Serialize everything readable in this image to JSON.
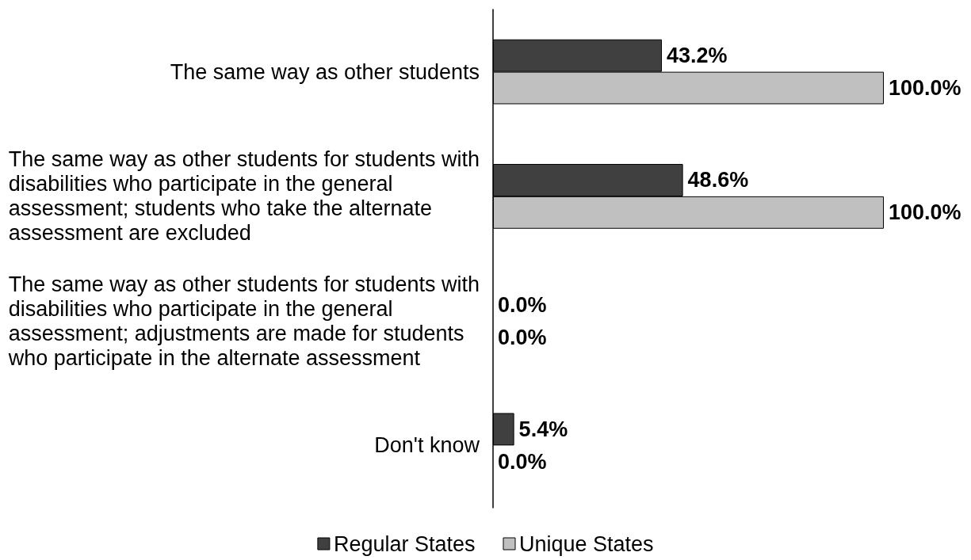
{
  "chart_data": {
    "type": "bar",
    "orientation": "horizontal",
    "categories": [
      "The same way as other students",
      "The same way as other students for students with disabilities who participate in the general assessment; students who take the alternate assessment are excluded",
      "The same way as other students for students with disabilities who participate in the general assessment; adjustments are made for students who participate in the alternate assessment",
      "Don't know"
    ],
    "series": [
      {
        "name": "Regular States",
        "color": "#404040",
        "values": [
          43.2,
          48.6,
          0,
          5.4
        ],
        "value_labels": [
          "43.2%",
          "48.6%",
          "0.0%",
          "5.4%"
        ]
      },
      {
        "name": "Unique States",
        "color": "#c0c0c0",
        "values": [
          100,
          100,
          0,
          0
        ],
        "value_labels": [
          "100.0%",
          "100.0%",
          "0.0%",
          "0.0%"
        ]
      }
    ],
    "xlim": [
      0,
      100
    ],
    "tick_labels": "y",
    "grid": false,
    "legend": "bottom"
  }
}
